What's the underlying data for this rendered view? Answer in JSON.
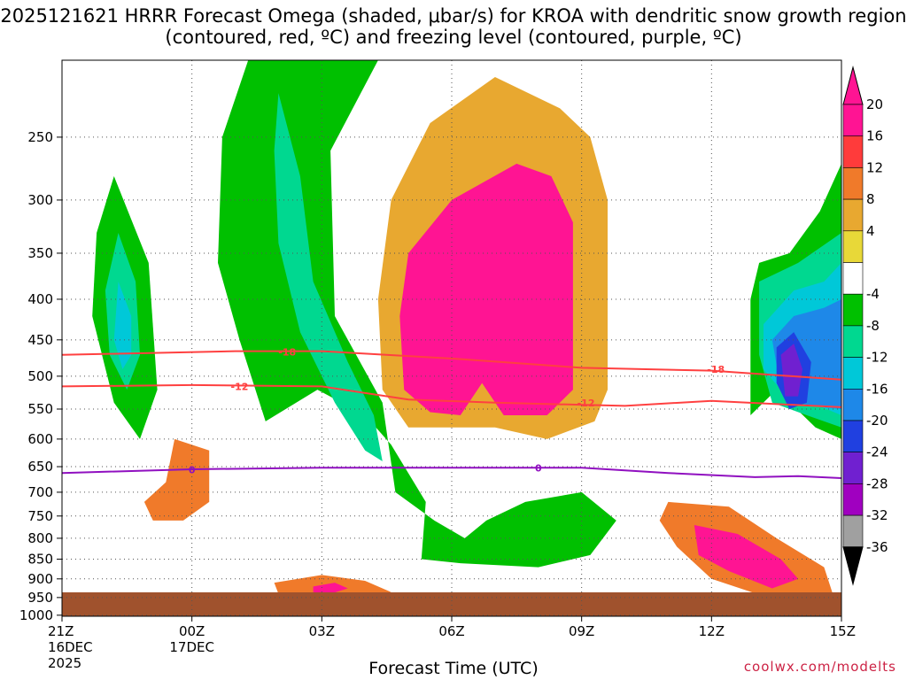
{
  "chart_data": {
    "type": "heatmap",
    "title": "2025121621 HRRR Forecast Omega (shaded, μbar/s) for KROA with dendritic snow growth region (contoured, red, ºC) and freezing level (contoured, purple, ºC)",
    "xlabel": "Forecast Time (UTC)",
    "ylabel": "",
    "credit": "coolwx.com/modelts",
    "x_ticks": [
      {
        "hour": 0,
        "label": "21Z",
        "sub": "16DEC",
        "sub2": "2025"
      },
      {
        "hour": 3,
        "label": "00Z",
        "sub": "17DEC",
        "sub2": ""
      },
      {
        "hour": 6,
        "label": "03Z",
        "sub": "",
        "sub2": ""
      },
      {
        "hour": 9,
        "label": "06Z",
        "sub": "",
        "sub2": ""
      },
      {
        "hour": 12,
        "label": "09Z",
        "sub": "",
        "sub2": ""
      },
      {
        "hour": 15,
        "label": "12Z",
        "sub": "",
        "sub2": ""
      },
      {
        "hour": 18,
        "label": "15Z",
        "sub": "",
        "sub2": ""
      }
    ],
    "y_ticks": [
      250,
      300,
      350,
      400,
      450,
      500,
      550,
      600,
      650,
      700,
      750,
      800,
      850,
      900,
      950,
      1000
    ],
    "ylim": [
      200,
      1000
    ],
    "xlim": [
      0,
      18
    ],
    "grid": true,
    "colorbar": {
      "labels": [
        "20",
        "16",
        "12",
        "8",
        "4",
        "-4",
        "-8",
        "-12",
        "-16",
        "-20",
        "-24",
        "-28",
        "-32",
        "-36"
      ],
      "colors": [
        "#ff1493",
        "#ff3b3b",
        "#f07a2a",
        "#e8a830",
        "#e8d838",
        "#ffffff",
        "#00c000",
        "#00d890",
        "#00c8d8",
        "#1e88e8",
        "#2040e0",
        "#7020d0",
        "#a000c0",
        "#a0a0a0"
      ]
    },
    "series": [
      {
        "name": "-18",
        "color": "#ff4040",
        "points": [
          [
            0,
            470
          ],
          [
            4,
            465
          ],
          [
            6,
            465
          ],
          [
            9,
            475
          ],
          [
            12,
            488
          ],
          [
            15,
            492
          ],
          [
            18,
            505
          ]
        ]
      },
      {
        "name": "-12",
        "color": "#ff4040",
        "points": [
          [
            0,
            515
          ],
          [
            3,
            513
          ],
          [
            6,
            515
          ],
          [
            8,
            535
          ],
          [
            10,
            540
          ],
          [
            13,
            545
          ],
          [
            15,
            537
          ],
          [
            18,
            547
          ]
        ]
      },
      {
        "name": "0",
        "color": "#9010c0",
        "points": [
          [
            0,
            662
          ],
          [
            3,
            655
          ],
          [
            6,
            652
          ],
          [
            9,
            652
          ],
          [
            12,
            652
          ],
          [
            14,
            662
          ],
          [
            16,
            670
          ],
          [
            17,
            668
          ],
          [
            18,
            672
          ]
        ]
      }
    ],
    "contour_labels": [
      {
        "text": "-18",
        "x": 5.2,
        "y": 466,
        "color": "#ff4040"
      },
      {
        "text": "-12",
        "x": 4.1,
        "y": 515,
        "color": "#ff4040"
      },
      {
        "text": "-12",
        "x": 12.1,
        "y": 540,
        "color": "#ff4040"
      },
      {
        "text": "-18",
        "x": 15.1,
        "y": 490,
        "color": "#ff4040"
      },
      {
        "text": "0",
        "x": 3.0,
        "y": 656,
        "color": "#9010c0"
      },
      {
        "text": "0",
        "x": 11.0,
        "y": 652,
        "color": "#9010c0"
      }
    ],
    "omega_regions": [
      {
        "value": -8,
        "color": "#00c000",
        "poly": [
          [
            4.3,
            200
          ],
          [
            7.3,
            200
          ],
          [
            6.2,
            260
          ],
          [
            6.3,
            420
          ],
          [
            7.4,
            540
          ],
          [
            7.7,
            700
          ],
          [
            8.6,
            760
          ],
          [
            9.3,
            800
          ],
          [
            9.8,
            760
          ],
          [
            10.7,
            720
          ],
          [
            12.0,
            700
          ],
          [
            12.8,
            760
          ],
          [
            12.2,
            840
          ],
          [
            11.0,
            870
          ],
          [
            9.2,
            860
          ],
          [
            8.3,
            850
          ],
          [
            8.4,
            720
          ],
          [
            7.6,
            610
          ],
          [
            7.0,
            560
          ],
          [
            5.9,
            520
          ],
          [
            4.7,
            570
          ],
          [
            4.1,
            450
          ],
          [
            3.6,
            360
          ],
          [
            3.7,
            250
          ]
        ]
      },
      {
        "value": -12,
        "color": "#00d890",
        "poly": [
          [
            5.0,
            220
          ],
          [
            5.5,
            280
          ],
          [
            5.8,
            380
          ],
          [
            6.6,
            480
          ],
          [
            7.2,
            560
          ],
          [
            7.4,
            640
          ],
          [
            7.0,
            620
          ],
          [
            6.3,
            540
          ],
          [
            5.5,
            440
          ],
          [
            5.0,
            340
          ],
          [
            4.9,
            260
          ]
        ]
      },
      {
        "value": -8,
        "color": "#00c000",
        "poly": [
          [
            1.2,
            280
          ],
          [
            2.0,
            360
          ],
          [
            2.2,
            520
          ],
          [
            1.8,
            600
          ],
          [
            1.2,
            540
          ],
          [
            0.7,
            420
          ],
          [
            0.8,
            330
          ]
        ]
      },
      {
        "value": -12,
        "color": "#00d890",
        "poly": [
          [
            1.3,
            330
          ],
          [
            1.7,
            380
          ],
          [
            1.8,
            470
          ],
          [
            1.5,
            520
          ],
          [
            1.1,
            470
          ],
          [
            1.0,
            390
          ]
        ]
      },
      {
        "value": -16,
        "color": "#00c8d8",
        "poly": [
          [
            1.3,
            380
          ],
          [
            1.6,
            420
          ],
          [
            1.6,
            470
          ],
          [
            1.4,
            490
          ],
          [
            1.2,
            450
          ]
        ]
      },
      {
        "value": -8,
        "color": "#00c000",
        "poly": [
          [
            16.5,
            520
          ],
          [
            17.4,
            580
          ],
          [
            18.0,
            600
          ],
          [
            18.0,
            270
          ],
          [
            17.5,
            310
          ],
          [
            16.8,
            350
          ],
          [
            16.1,
            360
          ],
          [
            15.9,
            400
          ],
          [
            15.9,
            560
          ]
        ]
      },
      {
        "value": -12,
        "color": "#00d890",
        "poly": [
          [
            16.1,
            380
          ],
          [
            17.0,
            360
          ],
          [
            18.0,
            330
          ],
          [
            18.0,
            580
          ],
          [
            17.2,
            560
          ],
          [
            16.4,
            540
          ],
          [
            16.1,
            470
          ]
        ]
      },
      {
        "value": -16,
        "color": "#00c8d8",
        "poly": [
          [
            16.2,
            430
          ],
          [
            16.9,
            390
          ],
          [
            17.6,
            380
          ],
          [
            18.0,
            360
          ],
          [
            18.0,
            560
          ],
          [
            17.3,
            540
          ],
          [
            16.6,
            520
          ],
          [
            16.2,
            490
          ]
        ]
      },
      {
        "value": -20,
        "color": "#1e88e8",
        "poly": [
          [
            16.4,
            450
          ],
          [
            16.9,
            420
          ],
          [
            17.6,
            410
          ],
          [
            18.0,
            400
          ],
          [
            18.0,
            550
          ],
          [
            17.2,
            545
          ],
          [
            16.6,
            520
          ]
        ]
      },
      {
        "value": -24,
        "color": "#2040e0",
        "poly": [
          [
            16.5,
            460
          ],
          [
            16.9,
            440
          ],
          [
            17.3,
            480
          ],
          [
            17.2,
            540
          ],
          [
            16.8,
            550
          ],
          [
            16.5,
            510
          ]
        ]
      },
      {
        "value": -28,
        "color": "#7020d0",
        "poly": [
          [
            16.6,
            470
          ],
          [
            16.9,
            455
          ],
          [
            17.1,
            490
          ],
          [
            17.0,
            530
          ],
          [
            16.7,
            530
          ]
        ]
      },
      {
        "value": 8,
        "color": "#e8a830",
        "poly": [
          [
            7.6,
            300
          ],
          [
            8.5,
            240
          ],
          [
            10.0,
            210
          ],
          [
            11.5,
            230
          ],
          [
            12.2,
            250
          ],
          [
            12.6,
            300
          ],
          [
            12.6,
            520
          ],
          [
            12.3,
            570
          ],
          [
            11.2,
            600
          ],
          [
            10.0,
            580
          ],
          [
            8.0,
            580
          ],
          [
            7.4,
            520
          ],
          [
            7.3,
            400
          ]
        ]
      },
      {
        "value": 20,
        "color": "#ff1493",
        "poly": [
          [
            8.0,
            350
          ],
          [
            9.0,
            300
          ],
          [
            10.5,
            270
          ],
          [
            11.3,
            280
          ],
          [
            11.8,
            320
          ],
          [
            11.8,
            520
          ],
          [
            11.2,
            560
          ],
          [
            10.2,
            560
          ],
          [
            9.7,
            510
          ],
          [
            9.2,
            560
          ],
          [
            8.5,
            555
          ],
          [
            7.9,
            520
          ],
          [
            7.8,
            420
          ]
        ]
      },
      {
        "value": 12,
        "color": "#f07a2a",
        "poly": [
          [
            2.6,
            600
          ],
          [
            3.4,
            620
          ],
          [
            3.4,
            720
          ],
          [
            2.8,
            760
          ],
          [
            2.1,
            760
          ],
          [
            1.9,
            720
          ],
          [
            2.4,
            680
          ]
        ]
      },
      {
        "value": 12,
        "color": "#f07a2a",
        "poly": [
          [
            14.0,
            720
          ],
          [
            15.4,
            730
          ],
          [
            16.5,
            800
          ],
          [
            17.6,
            870
          ],
          [
            17.8,
            940
          ],
          [
            16.3,
            950
          ],
          [
            15.0,
            900
          ],
          [
            14.2,
            820
          ],
          [
            13.8,
            760
          ]
        ]
      },
      {
        "value": 20,
        "color": "#ff1493",
        "poly": [
          [
            14.6,
            770
          ],
          [
            15.6,
            790
          ],
          [
            16.6,
            850
          ],
          [
            17.0,
            900
          ],
          [
            16.4,
            925
          ],
          [
            15.4,
            880
          ],
          [
            14.7,
            840
          ]
        ]
      },
      {
        "value": 12,
        "color": "#f07a2a",
        "poly": [
          [
            4.9,
            910
          ],
          [
            6.0,
            890
          ],
          [
            7.0,
            905
          ],
          [
            7.6,
            935
          ],
          [
            6.8,
            950
          ],
          [
            5.6,
            950
          ],
          [
            5.0,
            940
          ]
        ]
      },
      {
        "value": 20,
        "color": "#ff1493",
        "poly": [
          [
            5.8,
            920
          ],
          [
            6.3,
            910
          ],
          [
            6.6,
            925
          ],
          [
            6.2,
            940
          ],
          [
            5.8,
            935
          ]
        ]
      }
    ]
  }
}
